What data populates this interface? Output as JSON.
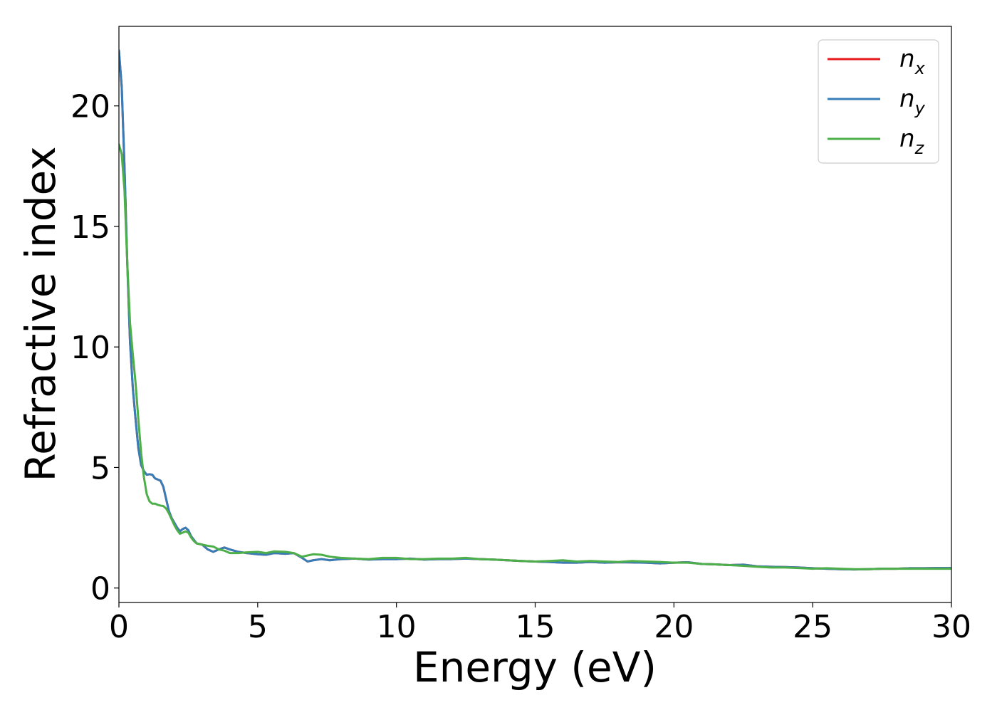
{
  "chart_data": {
    "type": "line",
    "title": "",
    "xlabel": "Energy (eV)",
    "ylabel": "Refractive index",
    "xlim": [
      0,
      30
    ],
    "ylim": [
      -0.6,
      23.3
    ],
    "xticks": [
      0,
      5,
      10,
      15,
      20,
      25,
      30
    ],
    "yticks": [
      0,
      5,
      10,
      15,
      20
    ],
    "grid": false,
    "legend_position": "top-right",
    "series": [
      {
        "name": "n_x",
        "legend_base": "n",
        "legend_sub": "x",
        "color": "#e41a1c",
        "points": [
          [
            0,
            22.3
          ],
          [
            0.1,
            20.8
          ],
          [
            0.2,
            17.5
          ],
          [
            0.3,
            13.5
          ],
          [
            0.4,
            10.2
          ],
          [
            0.5,
            8.3
          ],
          [
            0.6,
            7.0
          ],
          [
            0.7,
            5.8
          ],
          [
            0.8,
            5.1
          ],
          [
            0.9,
            4.85
          ],
          [
            1.0,
            4.7
          ],
          [
            1.1,
            4.72
          ],
          [
            1.2,
            4.7
          ],
          [
            1.3,
            4.55
          ],
          [
            1.4,
            4.5
          ],
          [
            1.5,
            4.45
          ],
          [
            1.6,
            4.2
          ],
          [
            1.7,
            3.7
          ],
          [
            1.8,
            3.2
          ],
          [
            1.9,
            2.9
          ],
          [
            2.0,
            2.7
          ],
          [
            2.1,
            2.5
          ],
          [
            2.2,
            2.35
          ],
          [
            2.3,
            2.45
          ],
          [
            2.4,
            2.5
          ],
          [
            2.5,
            2.4
          ],
          [
            2.6,
            2.15
          ],
          [
            2.7,
            2.0
          ],
          [
            2.8,
            1.85
          ],
          [
            3.0,
            1.8
          ],
          [
            3.2,
            1.6
          ],
          [
            3.4,
            1.5
          ],
          [
            3.6,
            1.6
          ],
          [
            3.8,
            1.68
          ],
          [
            4.0,
            1.6
          ],
          [
            4.3,
            1.5
          ],
          [
            4.6,
            1.45
          ],
          [
            5.0,
            1.4
          ],
          [
            5.3,
            1.38
          ],
          [
            5.6,
            1.45
          ],
          [
            6.0,
            1.42
          ],
          [
            6.3,
            1.45
          ],
          [
            6.6,
            1.25
          ],
          [
            6.8,
            1.1
          ],
          [
            7.0,
            1.15
          ],
          [
            7.3,
            1.2
          ],
          [
            7.6,
            1.15
          ],
          [
            8.0,
            1.2
          ],
          [
            8.5,
            1.22
          ],
          [
            9.0,
            1.18
          ],
          [
            9.5,
            1.2
          ],
          [
            10.0,
            1.2
          ],
          [
            10.5,
            1.22
          ],
          [
            11.0,
            1.18
          ],
          [
            11.5,
            1.2
          ],
          [
            12.0,
            1.2
          ],
          [
            12.5,
            1.22
          ],
          [
            13.0,
            1.2
          ],
          [
            13.5,
            1.18
          ],
          [
            14.0,
            1.15
          ],
          [
            14.5,
            1.12
          ],
          [
            15.0,
            1.1
          ],
          [
            15.5,
            1.08
          ],
          [
            16.0,
            1.05
          ],
          [
            16.5,
            1.05
          ],
          [
            17.0,
            1.08
          ],
          [
            17.5,
            1.05
          ],
          [
            18.0,
            1.07
          ],
          [
            18.5,
            1.06
          ],
          [
            19.0,
            1.05
          ],
          [
            19.5,
            1.02
          ],
          [
            20.0,
            1.05
          ],
          [
            20.5,
            1.07
          ],
          [
            21.0,
            1.0
          ],
          [
            21.5,
            0.98
          ],
          [
            22.0,
            0.95
          ],
          [
            22.5,
            0.97
          ],
          [
            23.0,
            0.9
          ],
          [
            23.5,
            0.88
          ],
          [
            24.0,
            0.87
          ],
          [
            24.5,
            0.85
          ],
          [
            25.0,
            0.82
          ],
          [
            25.5,
            0.8
          ],
          [
            26.0,
            0.78
          ],
          [
            26.5,
            0.77
          ],
          [
            27.0,
            0.78
          ],
          [
            27.5,
            0.8
          ],
          [
            28.0,
            0.8
          ],
          [
            28.5,
            0.82
          ],
          [
            29.0,
            0.82
          ],
          [
            29.5,
            0.83
          ],
          [
            30.0,
            0.83
          ]
        ]
      },
      {
        "name": "n_y",
        "legend_base": "n",
        "legend_sub": "y",
        "color": "#377eb8",
        "points": [
          [
            0,
            22.3
          ],
          [
            0.1,
            20.8
          ],
          [
            0.2,
            17.5
          ],
          [
            0.3,
            13.5
          ],
          [
            0.4,
            10.2
          ],
          [
            0.5,
            8.3
          ],
          [
            0.6,
            7.0
          ],
          [
            0.7,
            5.8
          ],
          [
            0.8,
            5.1
          ],
          [
            0.9,
            4.85
          ],
          [
            1.0,
            4.7
          ],
          [
            1.1,
            4.72
          ],
          [
            1.2,
            4.7
          ],
          [
            1.3,
            4.55
          ],
          [
            1.4,
            4.5
          ],
          [
            1.5,
            4.45
          ],
          [
            1.6,
            4.2
          ],
          [
            1.7,
            3.7
          ],
          [
            1.8,
            3.2
          ],
          [
            1.9,
            2.9
          ],
          [
            2.0,
            2.7
          ],
          [
            2.1,
            2.5
          ],
          [
            2.2,
            2.35
          ],
          [
            2.3,
            2.45
          ],
          [
            2.4,
            2.5
          ],
          [
            2.5,
            2.4
          ],
          [
            2.6,
            2.15
          ],
          [
            2.7,
            2.0
          ],
          [
            2.8,
            1.85
          ],
          [
            3.0,
            1.8
          ],
          [
            3.2,
            1.6
          ],
          [
            3.4,
            1.5
          ],
          [
            3.6,
            1.6
          ],
          [
            3.8,
            1.68
          ],
          [
            4.0,
            1.6
          ],
          [
            4.3,
            1.5
          ],
          [
            4.6,
            1.45
          ],
          [
            5.0,
            1.4
          ],
          [
            5.3,
            1.38
          ],
          [
            5.6,
            1.45
          ],
          [
            6.0,
            1.42
          ],
          [
            6.3,
            1.45
          ],
          [
            6.6,
            1.25
          ],
          [
            6.8,
            1.1
          ],
          [
            7.0,
            1.15
          ],
          [
            7.3,
            1.2
          ],
          [
            7.6,
            1.15
          ],
          [
            8.0,
            1.2
          ],
          [
            8.5,
            1.22
          ],
          [
            9.0,
            1.18
          ],
          [
            9.5,
            1.2
          ],
          [
            10.0,
            1.2
          ],
          [
            10.5,
            1.22
          ],
          [
            11.0,
            1.18
          ],
          [
            11.5,
            1.2
          ],
          [
            12.0,
            1.2
          ],
          [
            12.5,
            1.22
          ],
          [
            13.0,
            1.2
          ],
          [
            13.5,
            1.18
          ],
          [
            14.0,
            1.15
          ],
          [
            14.5,
            1.12
          ],
          [
            15.0,
            1.1
          ],
          [
            15.5,
            1.08
          ],
          [
            16.0,
            1.05
          ],
          [
            16.5,
            1.05
          ],
          [
            17.0,
            1.08
          ],
          [
            17.5,
            1.05
          ],
          [
            18.0,
            1.07
          ],
          [
            18.5,
            1.06
          ],
          [
            19.0,
            1.05
          ],
          [
            19.5,
            1.02
          ],
          [
            20.0,
            1.05
          ],
          [
            20.5,
            1.07
          ],
          [
            21.0,
            1.0
          ],
          [
            21.5,
            0.98
          ],
          [
            22.0,
            0.95
          ],
          [
            22.5,
            0.97
          ],
          [
            23.0,
            0.9
          ],
          [
            23.5,
            0.88
          ],
          [
            24.0,
            0.87
          ],
          [
            24.5,
            0.85
          ],
          [
            25.0,
            0.82
          ],
          [
            25.5,
            0.8
          ],
          [
            26.0,
            0.78
          ],
          [
            26.5,
            0.77
          ],
          [
            27.0,
            0.78
          ],
          [
            27.5,
            0.8
          ],
          [
            28.0,
            0.8
          ],
          [
            28.5,
            0.82
          ],
          [
            29.0,
            0.82
          ],
          [
            29.5,
            0.83
          ],
          [
            30.0,
            0.83
          ]
        ]
      },
      {
        "name": "n_z",
        "legend_base": "n",
        "legend_sub": "z",
        "color": "#4daf4a",
        "points": [
          [
            0,
            18.4
          ],
          [
            0.1,
            18.0
          ],
          [
            0.2,
            16.5
          ],
          [
            0.3,
            13.5
          ],
          [
            0.4,
            11.0
          ],
          [
            0.5,
            9.7
          ],
          [
            0.6,
            8.5
          ],
          [
            0.7,
            7.0
          ],
          [
            0.8,
            5.6
          ],
          [
            0.9,
            4.6
          ],
          [
            1.0,
            3.9
          ],
          [
            1.1,
            3.6
          ],
          [
            1.2,
            3.5
          ],
          [
            1.3,
            3.5
          ],
          [
            1.4,
            3.45
          ],
          [
            1.5,
            3.42
          ],
          [
            1.6,
            3.4
          ],
          [
            1.7,
            3.3
          ],
          [
            1.8,
            3.1
          ],
          [
            1.9,
            2.85
          ],
          [
            2.0,
            2.6
          ],
          [
            2.1,
            2.4
          ],
          [
            2.2,
            2.25
          ],
          [
            2.3,
            2.3
          ],
          [
            2.4,
            2.35
          ],
          [
            2.5,
            2.3
          ],
          [
            2.6,
            2.1
          ],
          [
            2.7,
            1.95
          ],
          [
            2.8,
            1.85
          ],
          [
            3.0,
            1.8
          ],
          [
            3.2,
            1.75
          ],
          [
            3.4,
            1.72
          ],
          [
            3.6,
            1.6
          ],
          [
            3.8,
            1.55
          ],
          [
            4.0,
            1.45
          ],
          [
            4.3,
            1.45
          ],
          [
            4.6,
            1.48
          ],
          [
            5.0,
            1.5
          ],
          [
            5.3,
            1.45
          ],
          [
            5.6,
            1.52
          ],
          [
            6.0,
            1.5
          ],
          [
            6.3,
            1.45
          ],
          [
            6.6,
            1.3
          ],
          [
            6.8,
            1.35
          ],
          [
            7.0,
            1.4
          ],
          [
            7.3,
            1.38
          ],
          [
            7.6,
            1.3
          ],
          [
            8.0,
            1.25
          ],
          [
            8.5,
            1.22
          ],
          [
            9.0,
            1.2
          ],
          [
            9.5,
            1.25
          ],
          [
            10.0,
            1.25
          ],
          [
            10.5,
            1.2
          ],
          [
            11.0,
            1.2
          ],
          [
            11.5,
            1.22
          ],
          [
            12.0,
            1.22
          ],
          [
            12.5,
            1.25
          ],
          [
            13.0,
            1.2
          ],
          [
            13.5,
            1.18
          ],
          [
            14.0,
            1.15
          ],
          [
            14.5,
            1.12
          ],
          [
            15.0,
            1.1
          ],
          [
            15.5,
            1.12
          ],
          [
            16.0,
            1.15
          ],
          [
            16.5,
            1.1
          ],
          [
            17.0,
            1.12
          ],
          [
            17.5,
            1.1
          ],
          [
            18.0,
            1.08
          ],
          [
            18.5,
            1.12
          ],
          [
            19.0,
            1.1
          ],
          [
            19.5,
            1.08
          ],
          [
            20.0,
            1.05
          ],
          [
            20.5,
            1.05
          ],
          [
            21.0,
            1.0
          ],
          [
            21.5,
            0.98
          ],
          [
            22.0,
            0.95
          ],
          [
            22.5,
            0.92
          ],
          [
            23.0,
            0.88
          ],
          [
            23.5,
            0.85
          ],
          [
            24.0,
            0.85
          ],
          [
            24.5,
            0.83
          ],
          [
            25.0,
            0.8
          ],
          [
            25.5,
            0.82
          ],
          [
            26.0,
            0.8
          ],
          [
            26.5,
            0.78
          ],
          [
            27.0,
            0.78
          ],
          [
            27.5,
            0.8
          ],
          [
            28.0,
            0.8
          ],
          [
            28.5,
            0.8
          ],
          [
            29.0,
            0.8
          ],
          [
            29.5,
            0.8
          ],
          [
            30.0,
            0.8
          ]
        ]
      }
    ]
  }
}
